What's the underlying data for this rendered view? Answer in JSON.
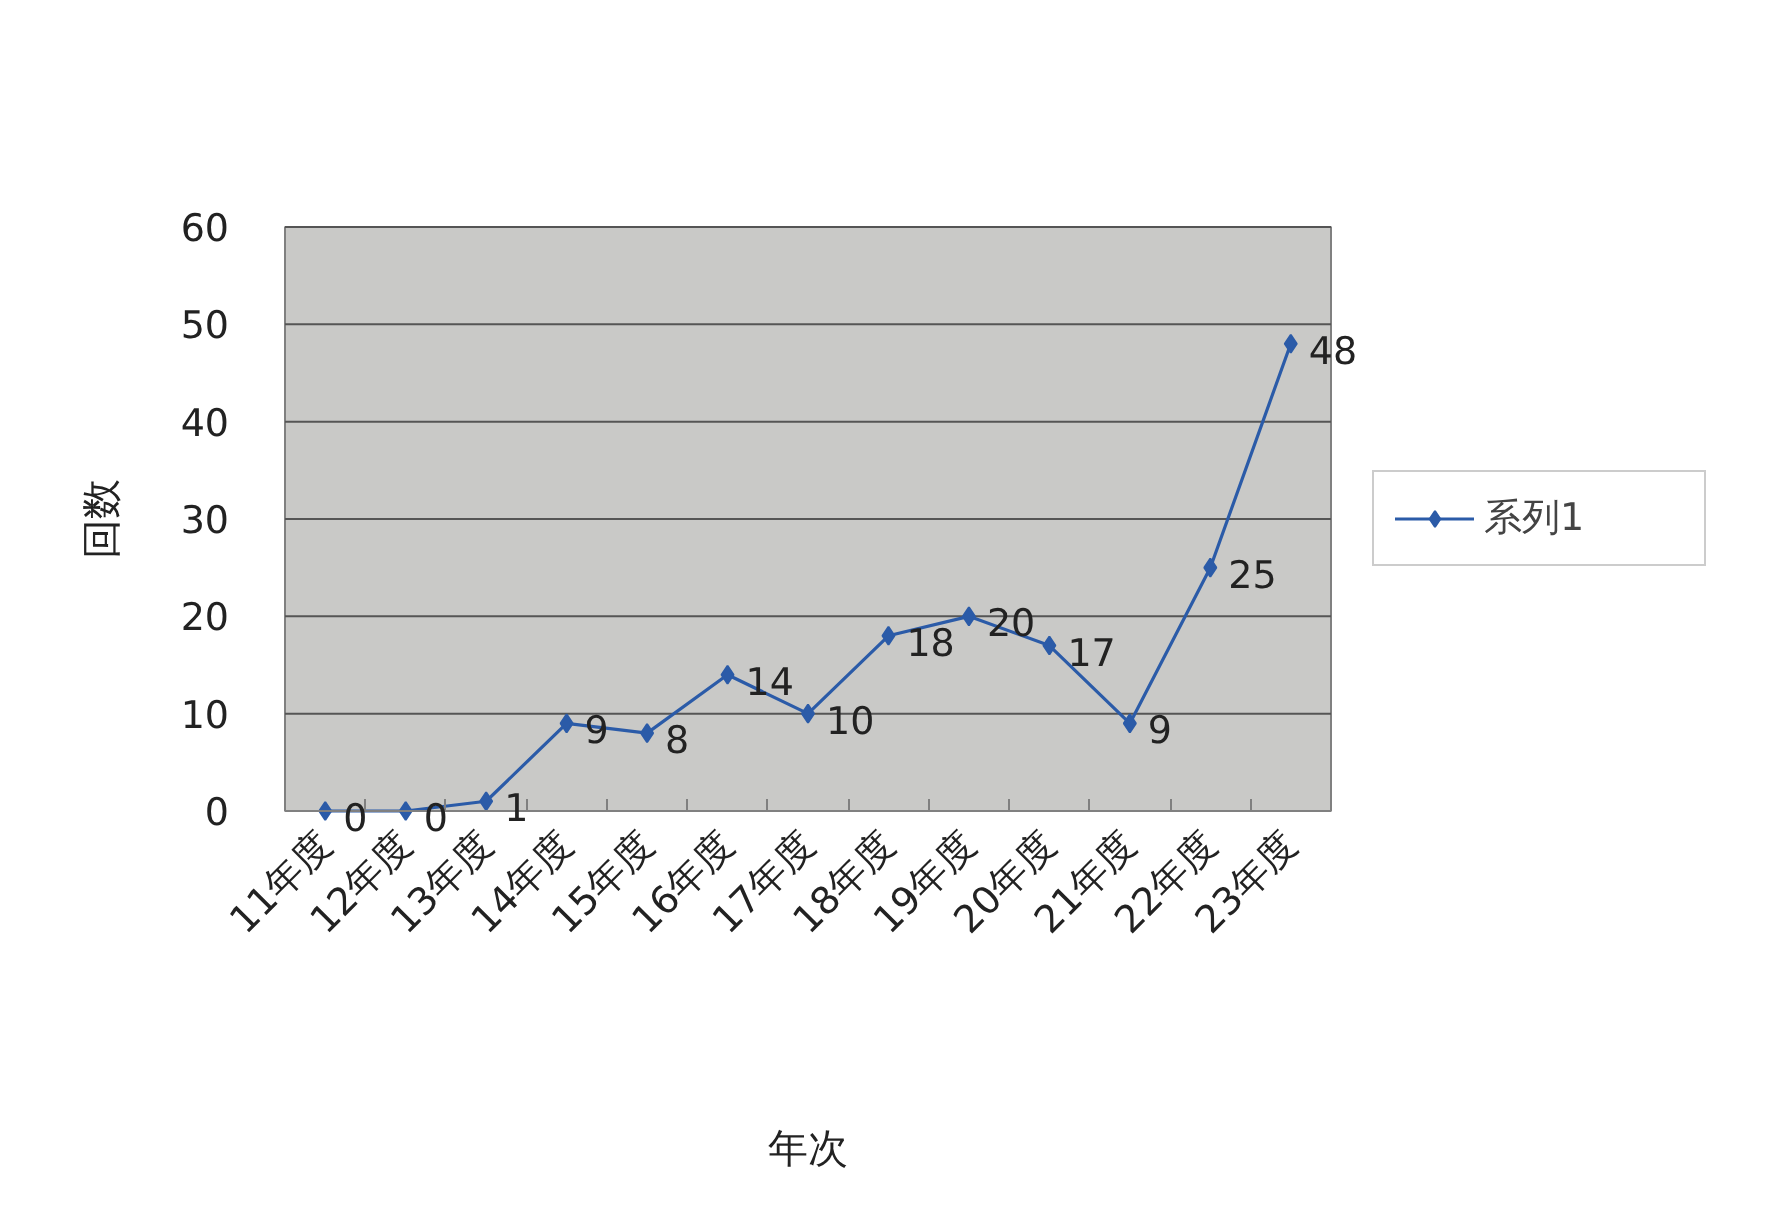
{
  "chart_data": {
    "type": "line",
    "xlabel": "年次",
    "ylabel": "回数",
    "categories": [
      "11年度",
      "12年度",
      "13年度",
      "14年度",
      "15年度",
      "16年度",
      "17年度",
      "18年度",
      "19年度",
      "20年度",
      "21年度",
      "22年度",
      "23年度"
    ],
    "series": [
      {
        "name": "系列1",
        "color": "#2b5ba8",
        "values": [
          0,
          0,
          1,
          9,
          8,
          14,
          10,
          18,
          20,
          17,
          9,
          25,
          48
        ]
      }
    ],
    "ylim": [
      0,
      60
    ],
    "yticks": [
      0,
      10,
      20,
      30,
      40,
      50,
      60
    ],
    "grid": "y",
    "legend": "right",
    "marker": "diamond",
    "line_style": "solid",
    "data_labels": true
  }
}
